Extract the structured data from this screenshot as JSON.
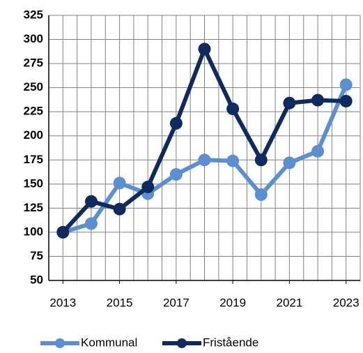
{
  "chart_data": {
    "type": "line",
    "x": [
      2013,
      2014,
      2015,
      2016,
      2017,
      2018,
      2019,
      2020,
      2021,
      2022,
      2023
    ],
    "xlim": [
      2012.5,
      2023.5
    ],
    "xticks": [
      2013,
      2015,
      2017,
      2019,
      2021,
      2023
    ],
    "ylim": [
      50,
      325
    ],
    "yticks": [
      50,
      75,
      100,
      125,
      150,
      175,
      200,
      225,
      250,
      275,
      300,
      325
    ],
    "grid": true,
    "legend": "bottom",
    "series": [
      {
        "name": "Kommunal",
        "color": "#5b8fd1",
        "values": [
          100,
          109,
          151,
          140,
          160,
          175,
          174,
          139,
          172,
          184,
          253
        ]
      },
      {
        "name": "Fristående",
        "color": "#0f2a5e",
        "values": [
          100,
          132,
          124,
          147,
          213,
          290,
          228,
          175,
          234,
          237,
          236
        ]
      }
    ]
  }
}
